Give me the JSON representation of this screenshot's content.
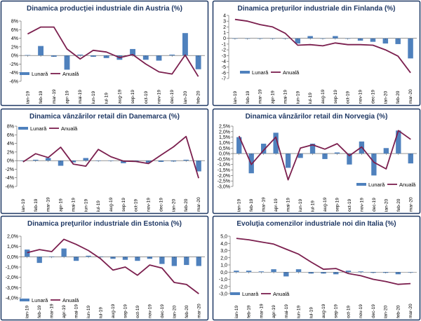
{
  "colors": {
    "frame": "#1f3864",
    "title": "#1f3864",
    "bar": "#4f81bd",
    "line": "#7b1f4e",
    "axis": "#555555",
    "grid": "#d9d9d9",
    "text": "#000000"
  },
  "chart_data": [
    {
      "type": "bar+line",
      "title": "Dinamica producţiei industriale din Austria (%)",
      "categories": [
        "ian-19",
        "feb-19",
        "mar-19",
        "apr-19",
        "mai-19",
        "iun-19",
        "iul-19",
        "aug-19",
        "sep-19",
        "oct-19",
        "nov-19",
        "dec-19",
        "ian-20",
        "feb-20"
      ],
      "tick_labels": [
        "8%",
        "6%",
        "4%",
        "2%",
        "0%",
        "-2%",
        "-4%",
        "-6%"
      ],
      "ylim": [
        -6,
        8
      ],
      "yticks": [
        8,
        6,
        4,
        2,
        0,
        -2,
        -4,
        -6
      ],
      "legend_position": "bottom-left",
      "series": [
        {
          "name": "Lunară",
          "kind": "bar",
          "values": [
            0.1,
            2.2,
            -0.3,
            -3.3,
            0.2,
            -0.3,
            -0.6,
            -1.0,
            1.5,
            -1.0,
            -1.2,
            0.2,
            5.2,
            -3.2
          ]
        },
        {
          "name": "Anuală",
          "kind": "line",
          "values": [
            5.0,
            6.6,
            6.6,
            1.5,
            -0.8,
            1.2,
            0.8,
            -0.5,
            0.2,
            -2.0,
            -3.8,
            -4.3,
            0.1,
            -4.9
          ]
        }
      ]
    },
    {
      "type": "bar+line",
      "title": "Dinamica preţurilor industriale din Finlanda (%)",
      "categories": [
        "ian-19",
        "feb-19",
        "mar-19",
        "apr-19",
        "mai-19",
        "iun-19",
        "iul-19",
        "aug-19",
        "sep-19",
        "oct-19",
        "nov-19",
        "dec-19",
        "ian-20",
        "feb-20",
        "mar-20"
      ],
      "tick_labels": [
        "4",
        "3",
        "2",
        "1",
        "0",
        "-1",
        "-2",
        "-3",
        "-4",
        "-5",
        "-6",
        "-7"
      ],
      "ylim": [
        -7,
        4
      ],
      "yticks": [
        4,
        3,
        2,
        1,
        0,
        -1,
        -2,
        -3,
        -4,
        -5,
        -6,
        -7
      ],
      "legend_position": "bottom-center",
      "series": [
        {
          "name": "Lunară",
          "kind": "bar",
          "values": [
            0.0,
            0.0,
            0.0,
            0.0,
            0.0,
            -0.9,
            0.4,
            0.0,
            0.4,
            0.0,
            -0.4,
            -0.6,
            -0.9,
            -1.0,
            -3.5
          ]
        },
        {
          "name": "Anuală",
          "kind": "line",
          "values": [
            3.3,
            3.0,
            2.4,
            2.0,
            0.9,
            -1.2,
            -1.1,
            -1.3,
            -0.8,
            -1.1,
            -1.1,
            -1.2,
            -2.0,
            -3.1,
            -6.0
          ]
        }
      ]
    },
    {
      "type": "bar+line",
      "title": "Dinamica vânzărilor retail din Danemarca (%)",
      "categories": [
        "ian-19",
        "feb-19",
        "mar-19",
        "apr-19",
        "mai-19",
        "iun-19",
        "iul-19",
        "aug-19",
        "sep-19",
        "oct-19",
        "nov-19",
        "dec-19",
        "ian-20",
        "feb-20",
        "mar-20"
      ],
      "tick_labels": [
        "8%",
        "6%",
        "4%",
        "2%",
        "0%",
        "-2%",
        "-4%",
        "-6%"
      ],
      "ylim": [
        -6,
        8
      ],
      "yticks": [
        8,
        6,
        4,
        2,
        0,
        -2,
        -4,
        -6
      ],
      "legend_position": "top-left",
      "series": [
        {
          "name": "Lunară",
          "kind": "bar",
          "values": [
            0.0,
            0.2,
            0.6,
            -1.2,
            -0.4,
            0.6,
            0.0,
            0.0,
            -0.6,
            -0.3,
            -0.5,
            -0.3,
            -0.2,
            0.2,
            -2.5
          ]
        },
        {
          "name": "Anuală",
          "kind": "line",
          "values": [
            -0.3,
            1.6,
            0.7,
            3.1,
            -0.8,
            -1.3,
            2.6,
            0.9,
            -0.1,
            -0.2,
            -0.7,
            1.3,
            3.2,
            5.6,
            -4.1
          ]
        }
      ]
    },
    {
      "type": "bar+line",
      "title": "Dinamica vânzărilor retail din Norvegia (%)",
      "categories": [
        "ian-19",
        "feb-19",
        "mar-19",
        "apr-19",
        "mai-19",
        "iun-19",
        "iul-19",
        "aug-19",
        "sep-19",
        "oct-19",
        "nov-19",
        "dec-19",
        "ian-20",
        "feb-20",
        "mar-20"
      ],
      "tick_labels": [
        "2,5%",
        "2,0%",
        "1,5%",
        "1,0%",
        "0,5%",
        "0,0%",
        "-0,5%",
        "-1,0%",
        "-1,5%",
        "-2,0%",
        "-2,5%",
        "-3,0%"
      ],
      "ylim": [
        -3.0,
        2.5
      ],
      "yticks": [
        2.5,
        2.0,
        1.5,
        1.0,
        0.5,
        0.0,
        -0.5,
        -1.0,
        -1.5,
        -2.0,
        -2.5,
        -3.0
      ],
      "legend_position": "bottom-right",
      "series": [
        {
          "name": "Lunară",
          "kind": "bar",
          "values": [
            1.5,
            -1.8,
            0.9,
            1.9,
            -1.3,
            -0.4,
            0.9,
            -0.5,
            0.1,
            -1.0,
            1.1,
            -2.0,
            0.5,
            2.1,
            -0.9
          ]
        },
        {
          "name": "Anuală",
          "kind": "line",
          "values": [
            1.6,
            -1.0,
            0.3,
            1.5,
            -2.4,
            0.5,
            0.8,
            0.4,
            0.9,
            -0.2,
            0.6,
            -0.8,
            -1.4,
            2.1,
            1.3
          ]
        }
      ]
    },
    {
      "type": "bar+line",
      "title": "Dinamica preţurilor industriale din Estonia (%)",
      "categories": [
        "ian-19",
        "feb-19",
        "mar-19",
        "apr-19",
        "mai-19",
        "iun-19",
        "iul-19",
        "aug-19",
        "sep-19",
        "oct-19",
        "nov-19",
        "dec-19",
        "ian-20",
        "feb-20",
        "mar-20"
      ],
      "tick_labels": [
        "2,0%",
        "1,0%",
        "0,0%",
        "-1,0%",
        "-2,0%",
        "-3,0%",
        "-4,0%"
      ],
      "ylim": [
        -4.0,
        2.0
      ],
      "yticks": [
        2.0,
        1.0,
        0.0,
        -1.0,
        -2.0,
        -3.0,
        -4.0
      ],
      "legend_position": "bottom-left",
      "series": [
        {
          "name": "Lunară",
          "kind": "bar",
          "values": [
            0.7,
            -0.6,
            0.0,
            0.8,
            -0.4,
            0.1,
            0.0,
            -0.2,
            -0.3,
            -0.4,
            -0.2,
            -0.7,
            -0.9,
            -0.8,
            -0.9
          ]
        },
        {
          "name": "Anuală",
          "kind": "line",
          "values": [
            0.4,
            0.7,
            0.5,
            1.7,
            1.2,
            0.6,
            -0.2,
            -1.3,
            -1.0,
            -1.8,
            -0.8,
            -1.1,
            -2.5,
            -2.7,
            -3.6
          ]
        }
      ]
    },
    {
      "type": "bar+line",
      "title": "Evoluţia comenzilor industriale noi din Italia (%)",
      "categories": [
        "ian-19",
        "feb-19",
        "mar-19",
        "apr-19",
        "mai-19",
        "iun-19",
        "iul-19",
        "aug-19",
        "sep-19",
        "oct-19",
        "nov-19",
        "dec-19",
        "ian-20",
        "feb-20",
        "mar-20"
      ],
      "tick_labels": [
        "5,0",
        "4,0",
        "3,0",
        "2,0",
        "1,0",
        "0,0",
        "-1,0",
        "-2,0",
        "-3,0"
      ],
      "ylim": [
        -3.0,
        5.0
      ],
      "yticks": [
        5,
        4,
        3,
        2,
        1,
        0,
        -1,
        -2,
        -3
      ],
      "legend_position": "bottom-left",
      "series": [
        {
          "name": "Lunară",
          "kind": "bar",
          "values": [
            0.2,
            0.2,
            0.1,
            0.4,
            -0.6,
            0.4,
            -0.2,
            -0.2,
            -0.3,
            0.2,
            0.1,
            -0.1,
            -0.1,
            -0.3,
            0.0
          ]
        },
        {
          "name": "Anuală",
          "kind": "line",
          "values": [
            4.7,
            4.5,
            4.2,
            3.9,
            3.2,
            2.5,
            1.4,
            0.4,
            0.5,
            -0.2,
            -0.5,
            -1.0,
            -1.3,
            -1.7,
            -1.6
          ]
        }
      ]
    }
  ]
}
